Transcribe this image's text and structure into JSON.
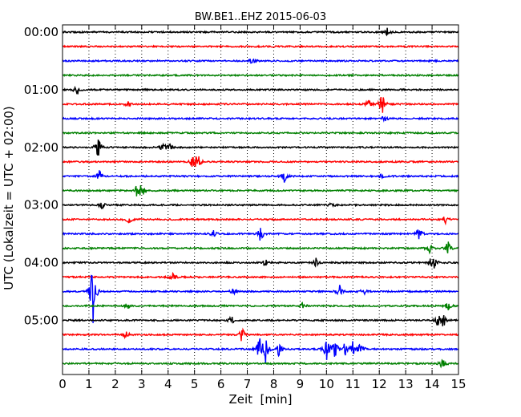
{
  "chart_data": {
    "type": "line",
    "title": "BW.BE1..EHZ 2015-06-03",
    "xlabel": "Zeit  [min]",
    "ylabel": "UTC (Lokalzeit = UTC + 02:00)",
    "xlim": [
      0,
      15
    ],
    "x_ticks": [
      "0",
      "1",
      "2",
      "3",
      "4",
      "5",
      "6",
      "7",
      "8",
      "9",
      "10",
      "11",
      "12",
      "13",
      "14",
      "15"
    ],
    "y_ticks": [
      "00:00",
      "01:00",
      "02:00",
      "03:00",
      "04:00",
      "05:00"
    ],
    "grid": "vertical dotted",
    "row_interval_minutes": 15,
    "colors": [
      "#000000",
      "#ff0000",
      "#0000ff",
      "#008000"
    ],
    "series": [
      {
        "start": "00:00",
        "events": [
          [
            12.3,
            0.25
          ]
        ]
      },
      {
        "start": "00:15",
        "events": []
      },
      {
        "start": "00:30",
        "events": [
          [
            7.2,
            0.25
          ]
        ]
      },
      {
        "start": "00:45",
        "events": []
      },
      {
        "start": "01:00",
        "events": [
          [
            0.55,
            0.45
          ]
        ]
      },
      {
        "start": "01:15",
        "events": [
          [
            2.5,
            0.3
          ],
          [
            11.6,
            0.4
          ],
          [
            12.1,
            1.0
          ]
        ]
      },
      {
        "start": "01:30",
        "events": [
          [
            12.2,
            0.25
          ]
        ]
      },
      {
        "start": "01:45",
        "events": []
      },
      {
        "start": "02:00",
        "events": [
          [
            1.35,
            0.9
          ],
          [
            3.8,
            0.3
          ],
          [
            4.05,
            0.3
          ]
        ]
      },
      {
        "start": "02:15",
        "events": [
          [
            4.9,
            0.35
          ],
          [
            5.1,
            0.85
          ]
        ]
      },
      {
        "start": "02:30",
        "events": [
          [
            1.4,
            0.5
          ],
          [
            8.4,
            0.5
          ],
          [
            12.1,
            0.2
          ]
        ]
      },
      {
        "start": "02:45",
        "events": [
          [
            2.8,
            0.4
          ],
          [
            3.0,
            0.55
          ]
        ]
      },
      {
        "start": "03:00",
        "events": [
          [
            1.5,
            0.3
          ],
          [
            10.2,
            0.2
          ]
        ]
      },
      {
        "start": "03:15",
        "events": [
          [
            2.5,
            0.45
          ],
          [
            14.5,
            0.3
          ]
        ]
      },
      {
        "start": "03:30",
        "events": [
          [
            5.7,
            0.3
          ],
          [
            7.5,
            0.6
          ],
          [
            13.5,
            0.55
          ]
        ]
      },
      {
        "start": "03:45",
        "events": [
          [
            13.9,
            0.35
          ],
          [
            14.6,
            0.55
          ]
        ]
      },
      {
        "start": "04:00",
        "events": [
          [
            7.7,
            0.35
          ],
          [
            9.6,
            0.3
          ],
          [
            13.9,
            0.4
          ],
          [
            14.1,
            0.45
          ]
        ]
      },
      {
        "start": "04:15",
        "events": [
          [
            4.2,
            0.3
          ]
        ]
      },
      {
        "start": "04:30",
        "events": [
          [
            1.15,
            2.8
          ],
          [
            6.5,
            0.35
          ],
          [
            10.5,
            0.5
          ],
          [
            11.4,
            0.3
          ]
        ]
      },
      {
        "start": "04:45",
        "events": [
          [
            2.5,
            0.2
          ],
          [
            9.1,
            0.25
          ],
          [
            14.6,
            0.3
          ]
        ]
      },
      {
        "start": "05:00",
        "events": [
          [
            6.4,
            0.3
          ],
          [
            14.2,
            0.35
          ],
          [
            14.4,
            0.75
          ]
        ]
      },
      {
        "start": "05:15",
        "events": [
          [
            2.4,
            0.3
          ],
          [
            6.8,
            0.6
          ]
        ]
      },
      {
        "start": "05:30",
        "events": [
          [
            7.45,
            1.1
          ],
          [
            7.7,
            1.0
          ],
          [
            8.2,
            0.6
          ],
          [
            10.0,
            0.85
          ],
          [
            10.3,
            1.0
          ],
          [
            10.7,
            0.5
          ],
          [
            11.0,
            0.6
          ],
          [
            11.3,
            0.5
          ]
        ]
      },
      {
        "start": "05:45",
        "events": [
          [
            14.4,
            0.45
          ]
        ]
      }
    ]
  }
}
